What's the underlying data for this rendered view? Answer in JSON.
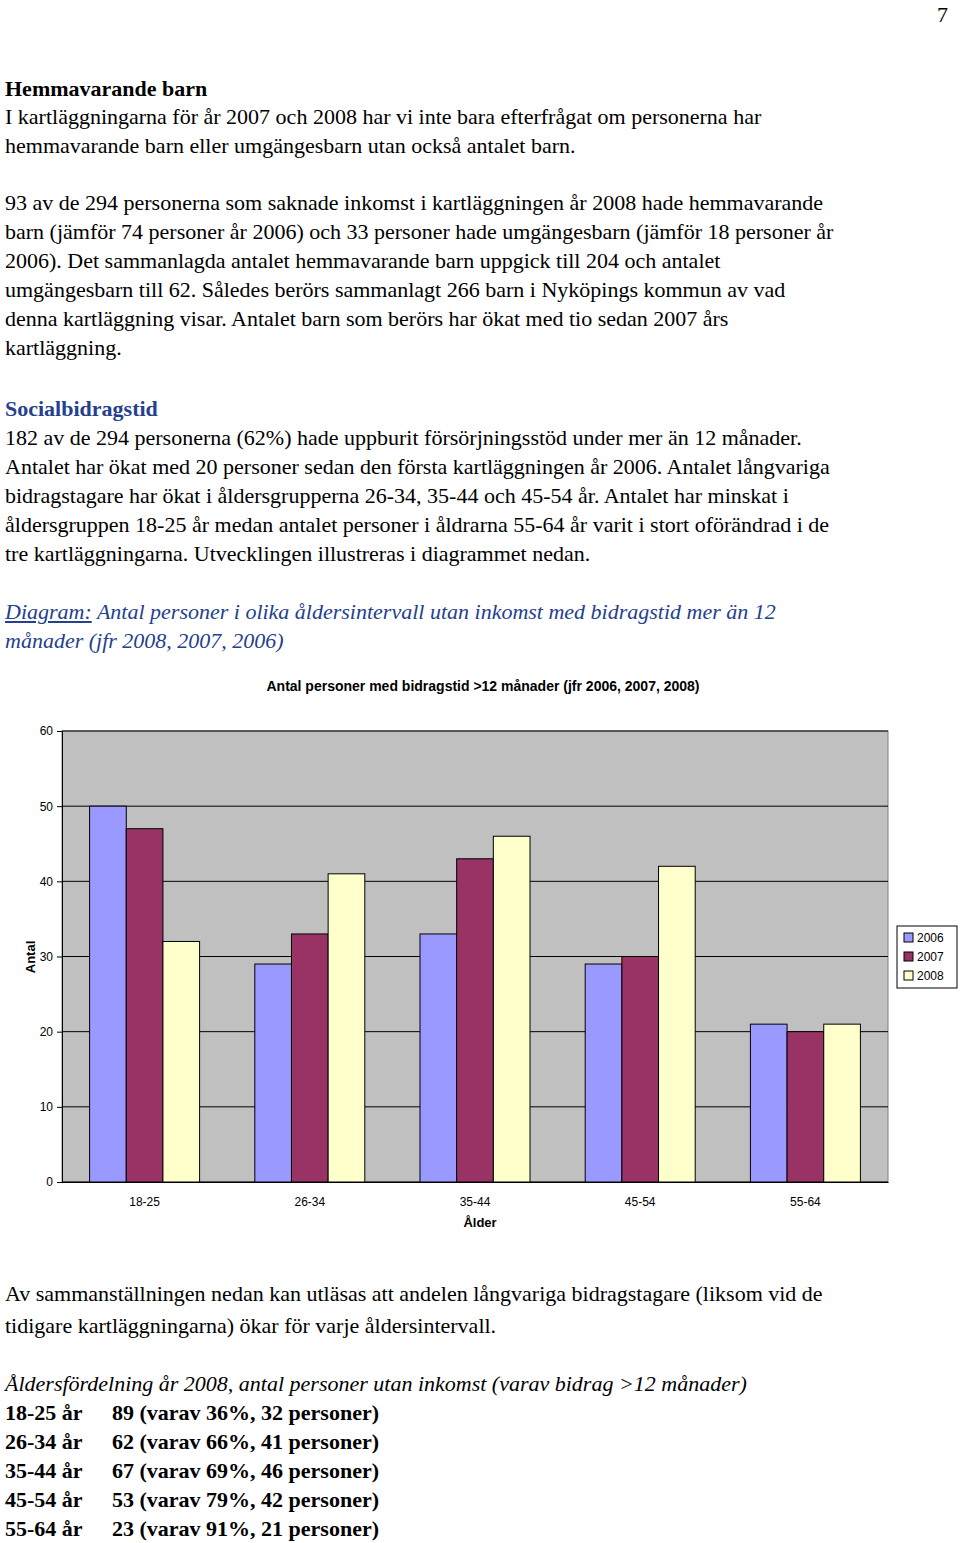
{
  "page": {
    "page_number": "7",
    "section1": {
      "heading": "Hemmavarande barn",
      "p1": [
        "I kartläggningarna för år 2007 och 2008 har vi inte bara efterfrågat om personerna har",
        "hemmavarande barn eller umgängesbarn utan också antalet barn."
      ],
      "p2": [
        "93 av de 294 personerna som saknade inkomst i kartläggningen år 2008 hade hemmavarande",
        "barn (jämför 74 personer år 2006) och 33 personer hade umgängesbarn (jämför 18 personer år",
        "2006). Det sammanlagda antalet hemmavarande barn uppgick till 204 och antalet",
        "umgängesbarn till 62. Således berörs sammanlagt 266 barn i Nyköpings kommun av vad",
        "denna kartläggning visar. Antalet barn som berörs har ökat med tio sedan 2007 års",
        "kartläggning."
      ]
    },
    "section2": {
      "heading": "Socialbidragstid",
      "p1": [
        "182 av de 294 personerna (62%) hade uppburit försörjningsstöd under mer än 12 månader.",
        "Antalet har ökat med 20 personer sedan den första kartläggningen år 2006. Antalet långvariga",
        "bidragstagare har ökat i åldersgrupperna 26-34, 35-44 och 45-54 år. Antalet har minskat i",
        "åldersgruppen 18-25 år medan antalet personer i åldrarna 55-64 år varit i stort oförändrad i de",
        "tre kartläggningarna. Utvecklingen illustreras i diagrammet nedan."
      ]
    },
    "caption": {
      "label": "Diagram:",
      "lines": [
        "Antal personer i olika åldersintervall utan inkomst med bidragstid mer än 12",
        "månader (jfr 2008, 2007, 2006)"
      ]
    },
    "after_chart": [
      "Av sammanställningen nedan kan utläsas att andelen långvariga bidragstagare (liksom vid de",
      "tidigare kartläggningarna) ökar för varje åldersintervall."
    ],
    "table_caption": "Åldersfördelning år 2008, antal personer utan inkomst (varav bidrag >12 månader)",
    "table_rows": [
      [
        "18-25 år",
        "89 (varav 36%, 32 personer)"
      ],
      [
        "26-34 år",
        "62 (varav 66%, 41 personer)"
      ],
      [
        "35-44 år",
        "67 (varav 69%, 46 personer)"
      ],
      [
        "45-54 år",
        "53 (varav 79%, 42 personer)"
      ],
      [
        "55-64 år",
        "23 (varav 91%, 21 personer)"
      ]
    ]
  },
  "chart_data": {
    "type": "bar",
    "title": "Antal personer med bidragstid >12 månader (jfr 2006, 2007, 2008)",
    "x_label": "Ålder",
    "y_label": "Antal",
    "categories": [
      "18-25",
      "26-34",
      "35-44",
      "45-54",
      "55-64"
    ],
    "series": [
      {
        "name": "2006",
        "color": "#9999ff",
        "values": [
          50,
          29,
          33,
          29,
          21
        ]
      },
      {
        "name": "2007",
        "color": "#993366",
        "values": [
          47,
          33,
          43,
          30,
          20
        ]
      },
      {
        "name": "2008",
        "color": "#ffffcc",
        "values": [
          32,
          41,
          46,
          42,
          21
        ]
      }
    ],
    "ylim": [
      0,
      60
    ],
    "yticks": [
      0,
      10,
      20,
      30,
      40,
      50,
      60
    ],
    "grid": true,
    "legend": "right"
  }
}
